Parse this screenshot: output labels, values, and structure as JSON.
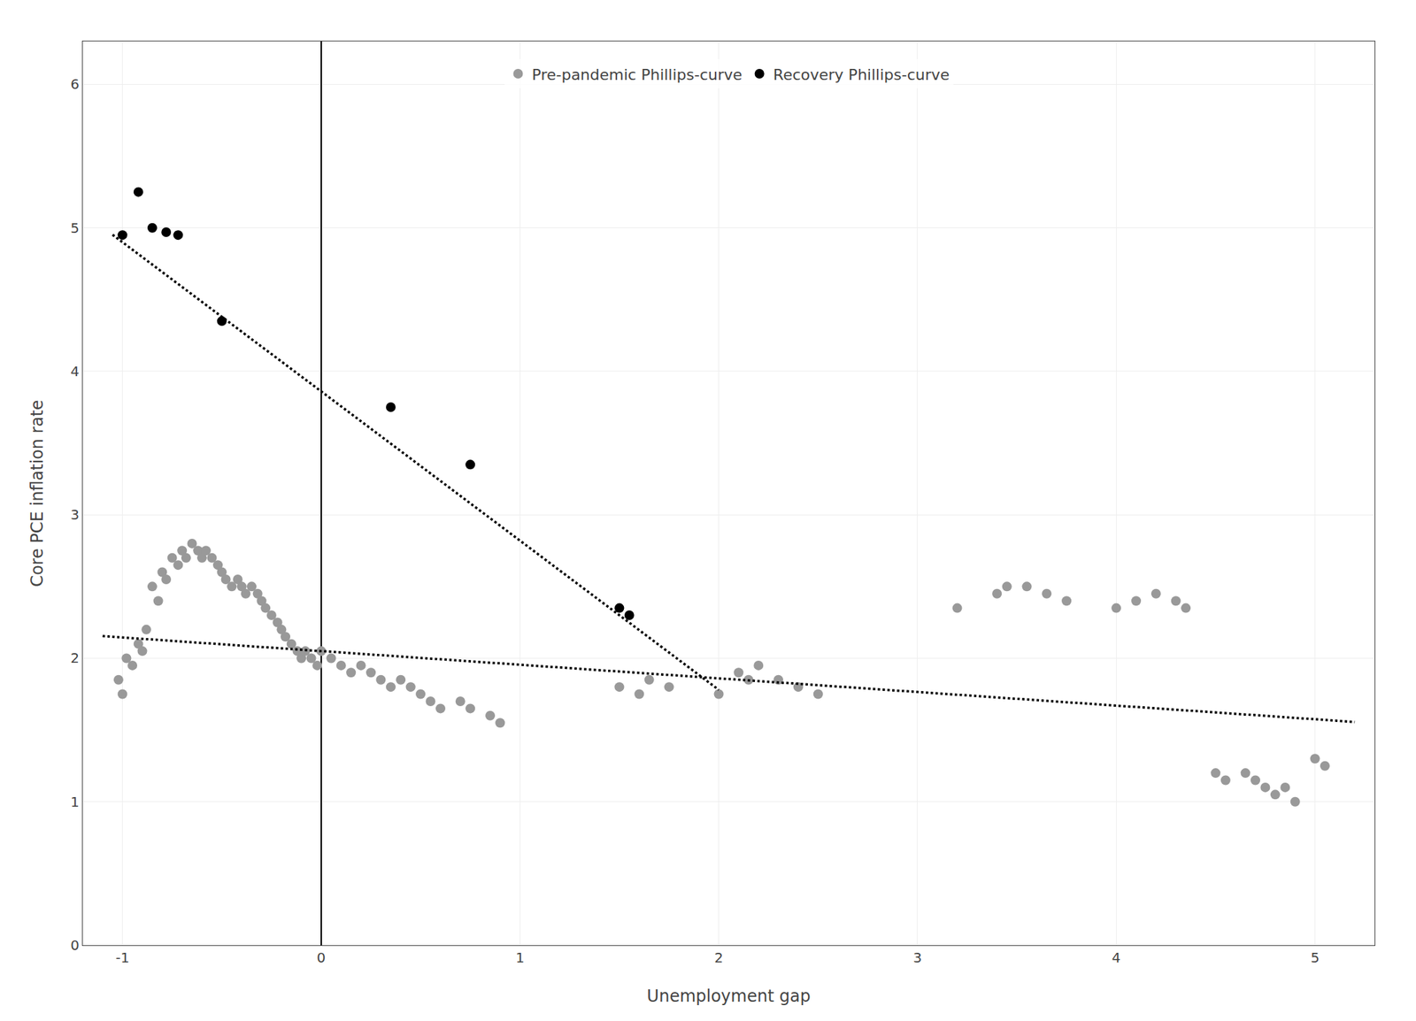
{
  "chart_data": {
    "type": "scatter",
    "xlabel": "Unemployment gap",
    "ylabel": "Core PCE inflation rate",
    "xlim": [
      -1.2,
      5.3
    ],
    "ylim": [
      0,
      6.3
    ],
    "xticks": [
      -1,
      0,
      1,
      2,
      3,
      4,
      5
    ],
    "yticks": [
      0,
      1,
      2,
      3,
      4,
      5,
      6
    ],
    "grid": true,
    "legend": "top",
    "series": [
      {
        "name": "Pre-pandemic Phillips-curve",
        "color": "#999999",
        "marker": "circle",
        "x": [
          -1.02,
          -1.0,
          -0.98,
          -0.95,
          -0.92,
          -0.9,
          -0.88,
          -0.85,
          -0.82,
          -0.8,
          -0.78,
          -0.75,
          -0.72,
          -0.7,
          -0.68,
          -0.65,
          -0.62,
          -0.6,
          -0.58,
          -0.55,
          -0.52,
          -0.5,
          -0.48,
          -0.45,
          -0.42,
          -0.4,
          -0.38,
          -0.35,
          -0.32,
          -0.3,
          -0.28,
          -0.25,
          -0.22,
          -0.2,
          -0.18,
          -0.15,
          -0.12,
          -0.1,
          -0.08,
          -0.05,
          -0.02,
          0.0,
          0.05,
          0.1,
          0.15,
          0.2,
          0.25,
          0.3,
          0.35,
          0.4,
          0.45,
          0.5,
          0.55,
          0.6,
          0.7,
          0.75,
          0.85,
          0.9,
          1.5,
          1.6,
          1.65,
          1.75,
          2.0,
          2.1,
          2.15,
          2.2,
          2.3,
          2.4,
          2.5,
          3.2,
          3.4,
          3.45,
          3.55,
          3.65,
          3.75,
          4.0,
          4.1,
          4.2,
          4.3,
          4.35,
          4.5,
          4.55,
          4.65,
          4.7,
          4.75,
          4.8,
          4.85,
          4.9,
          5.0,
          5.05
        ],
        "values": [
          1.85,
          1.75,
          2.0,
          1.95,
          2.1,
          2.05,
          2.2,
          2.5,
          2.4,
          2.6,
          2.55,
          2.7,
          2.65,
          2.75,
          2.7,
          2.8,
          2.75,
          2.7,
          2.75,
          2.7,
          2.65,
          2.6,
          2.55,
          2.5,
          2.55,
          2.5,
          2.45,
          2.5,
          2.45,
          2.4,
          2.35,
          2.3,
          2.25,
          2.2,
          2.15,
          2.1,
          2.05,
          2.0,
          2.05,
          2.0,
          1.95,
          2.05,
          2.0,
          1.95,
          1.9,
          1.95,
          1.9,
          1.85,
          1.8,
          1.85,
          1.8,
          1.75,
          1.7,
          1.65,
          1.7,
          1.65,
          1.6,
          1.55,
          1.8,
          1.75,
          1.85,
          1.8,
          1.75,
          1.9,
          1.85,
          1.95,
          1.85,
          1.8,
          1.75,
          2.35,
          2.45,
          2.5,
          2.5,
          2.45,
          2.4,
          2.35,
          2.4,
          2.45,
          2.4,
          2.35,
          1.2,
          1.15,
          1.2,
          1.15,
          1.1,
          1.05,
          1.1,
          1.0,
          1.3,
          1.25
        ]
      },
      {
        "name": "Recovery Phillips-curve",
        "color": "#000000",
        "marker": "circle",
        "x": [
          -1.0,
          -0.92,
          -0.85,
          -0.78,
          -0.72,
          -0.5,
          0.35,
          0.75,
          1.5,
          1.55
        ],
        "values": [
          4.95,
          5.25,
          5.0,
          4.97,
          4.95,
          4.35,
          3.75,
          3.35,
          2.35,
          2.3
        ]
      },
      {
        "type": "line",
        "color": "#000000",
        "line_style": "dotted",
        "x": [
          -1.1,
          5.2
        ],
        "values": [
          2.1545,
          1.556
        ]
      },
      {
        "type": "line",
        "color": "#000000",
        "line_style": "dotted",
        "x": [
          -1.05,
          2.0
        ],
        "values": [
          4.952,
          1.78
        ]
      }
    ]
  }
}
